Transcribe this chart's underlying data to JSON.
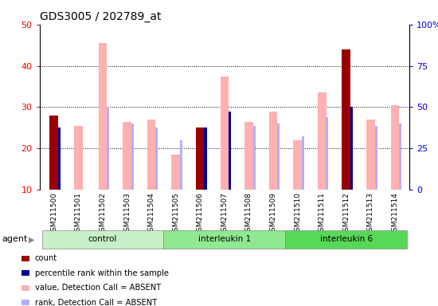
{
  "title": "GDS3005 / 202789_at",
  "samples": [
    "GSM211500",
    "GSM211501",
    "GSM211502",
    "GSM211503",
    "GSM211504",
    "GSM211505",
    "GSM211506",
    "GSM211507",
    "GSM211508",
    "GSM211509",
    "GSM211510",
    "GSM211511",
    "GSM211512",
    "GSM211513",
    "GSM211514"
  ],
  "count_values": [
    28,
    0,
    0,
    0,
    0,
    0,
    25,
    0,
    0,
    0,
    0,
    0,
    44,
    0,
    0
  ],
  "percentile_rank": [
    25,
    0,
    0,
    0,
    0,
    0,
    25,
    29,
    0,
    0,
    0,
    0,
    30,
    0,
    0
  ],
  "value_absent": [
    0,
    25.5,
    45.5,
    26.5,
    27.0,
    18.5,
    0,
    37.5,
    26.5,
    29.0,
    22.0,
    33.5,
    0,
    27.0,
    30.5
  ],
  "rank_absent": [
    25,
    0,
    30,
    26,
    25,
    22,
    0,
    28.5,
    25.5,
    26,
    23,
    27.5,
    0,
    25.5,
    26
  ],
  "groups": [
    {
      "label": "control",
      "start": 0,
      "end": 4,
      "color": "#c8f0c8"
    },
    {
      "label": "interleukin 1",
      "start": 5,
      "end": 9,
      "color": "#90e890"
    },
    {
      "label": "interleukin 6",
      "start": 10,
      "end": 14,
      "color": "#58d858"
    }
  ],
  "ymin": 10,
  "ymax": 50,
  "yticks_left": [
    10,
    20,
    30,
    40,
    50
  ],
  "yticks_right": [
    0,
    25,
    50,
    75,
    100
  ],
  "count_color": "#990000",
  "percentile_color": "#000099",
  "value_absent_color": "#ffb0b0",
  "rank_absent_color": "#b0b0ff",
  "bg_color": "#ffffff",
  "figsize": [
    5.5,
    3.84
  ],
  "dpi": 100
}
